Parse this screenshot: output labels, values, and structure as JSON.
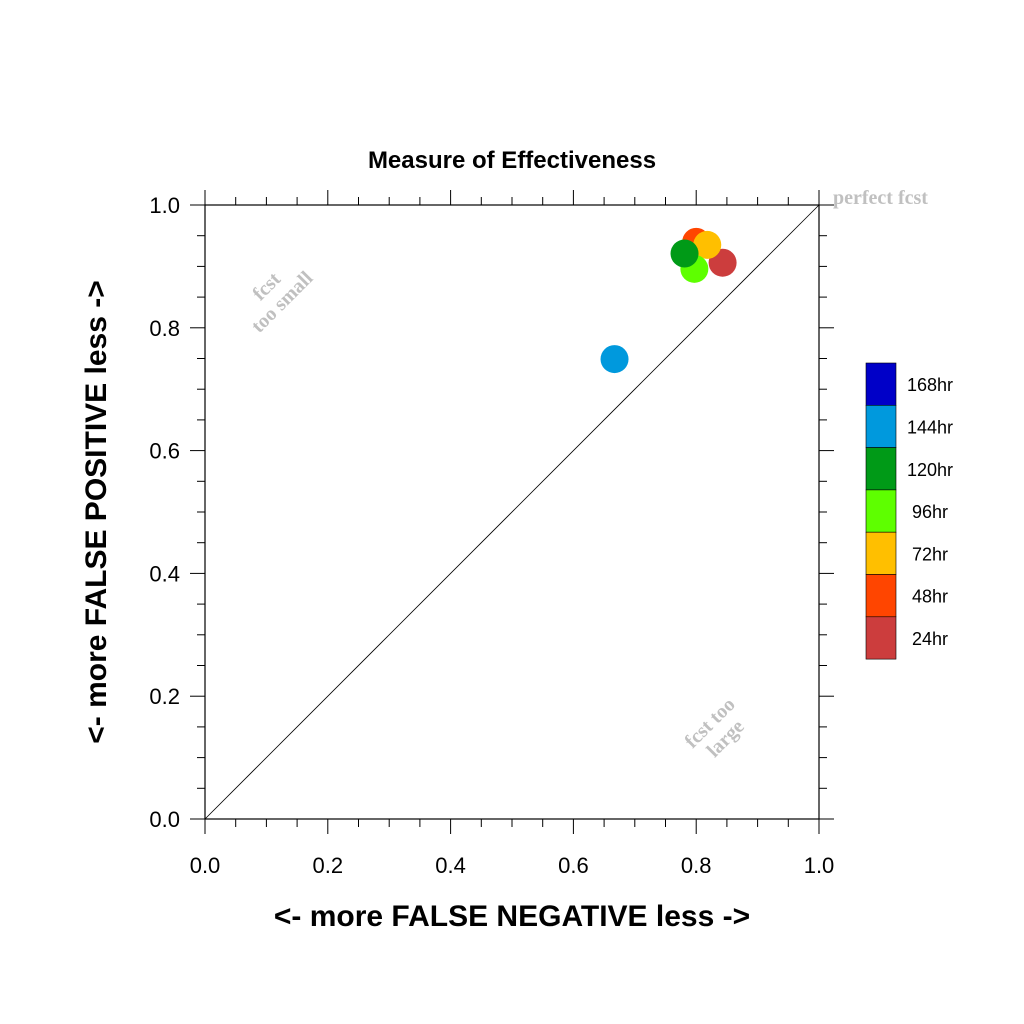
{
  "chart_data": {
    "type": "scatter",
    "title": "Measure of Effectiveness",
    "xlabel": "<- more   FALSE NEGATIVE   less ->",
    "ylabel": "<- more   FALSE POSITIVE   less ->",
    "xlim": [
      0.0,
      1.0
    ],
    "ylim": [
      0.0,
      1.0
    ],
    "x_ticks": [
      "0.0",
      "0.2",
      "0.4",
      "0.6",
      "0.8",
      "1.0"
    ],
    "y_ticks": [
      "0.0",
      "0.2",
      "0.4",
      "0.6",
      "0.8",
      "1.0"
    ],
    "grid": false,
    "diagonal": true,
    "legend_position": "right",
    "annotations": {
      "perfect": "perfect fcst",
      "too_small_1": "fcst",
      "too_small_2": "too small",
      "too_large_1": "fcst too",
      "too_large_2": "large"
    },
    "series": [
      {
        "name": "24hr",
        "color": "#cc3d3d",
        "x": 0.843,
        "y": 0.906
      },
      {
        "name": "48hr",
        "color": "#ff4500",
        "x": 0.8,
        "y": 0.94
      },
      {
        "name": "72hr",
        "color": "#ffbf00",
        "x": 0.818,
        "y": 0.935
      },
      {
        "name": "96hr",
        "color": "#5eff00",
        "x": 0.797,
        "y": 0.896
      },
      {
        "name": "120hr",
        "color": "#009a17",
        "x": 0.781,
        "y": 0.921
      },
      {
        "name": "144hr",
        "color": "#0099dd",
        "x": 0.667,
        "y": 0.749
      }
    ],
    "legend": [
      {
        "name": "168hr",
        "color": "#0000c8"
      },
      {
        "name": "144hr",
        "color": "#0099dd"
      },
      {
        "name": "120hr",
        "color": "#009a17"
      },
      {
        "name": "96hr",
        "color": "#5eff00"
      },
      {
        "name": "72hr",
        "color": "#ffbf00"
      },
      {
        "name": "48hr",
        "color": "#ff4500"
      },
      {
        "name": "24hr",
        "color": "#cc3d3d"
      }
    ]
  }
}
